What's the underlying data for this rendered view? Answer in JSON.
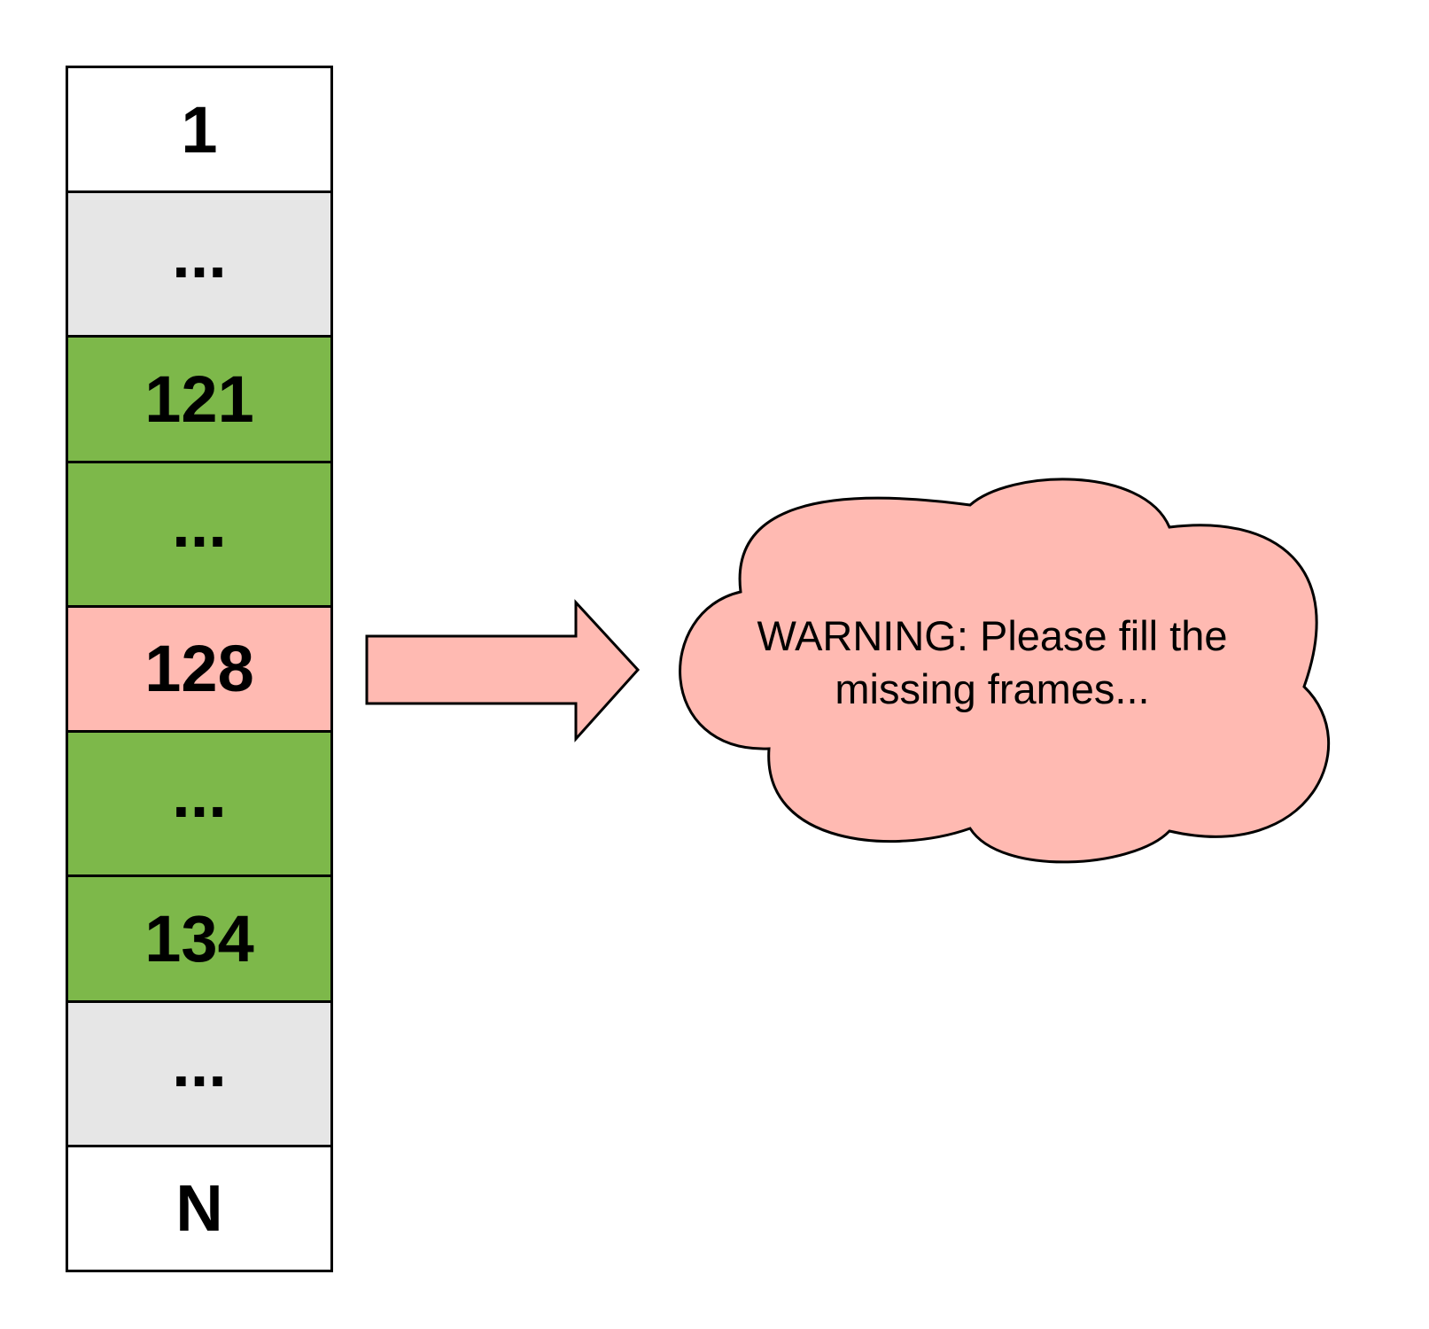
{
  "frames": [
    {
      "label": "1",
      "status": "unprocessed",
      "color": "#ffffff"
    },
    {
      "label": "...",
      "status": "skipped",
      "color": "#e6e6e6"
    },
    {
      "label": "121",
      "status": "present",
      "color": "#7db84a"
    },
    {
      "label": "...",
      "status": "present",
      "color": "#7db84a"
    },
    {
      "label": "128",
      "status": "missing",
      "color": "#ffbab2"
    },
    {
      "label": "...",
      "status": "present",
      "color": "#7db84a"
    },
    {
      "label": "134",
      "status": "present",
      "color": "#7db84a"
    },
    {
      "label": "...",
      "status": "skipped",
      "color": "#e6e6e6"
    },
    {
      "label": "N",
      "status": "unprocessed",
      "color": "#ffffff"
    }
  ],
  "warning": {
    "text": "WARNING: Please fill the missing frames...",
    "fill_color": "#ffbab2"
  },
  "arrow": {
    "fill_color": "#ffbab2"
  }
}
